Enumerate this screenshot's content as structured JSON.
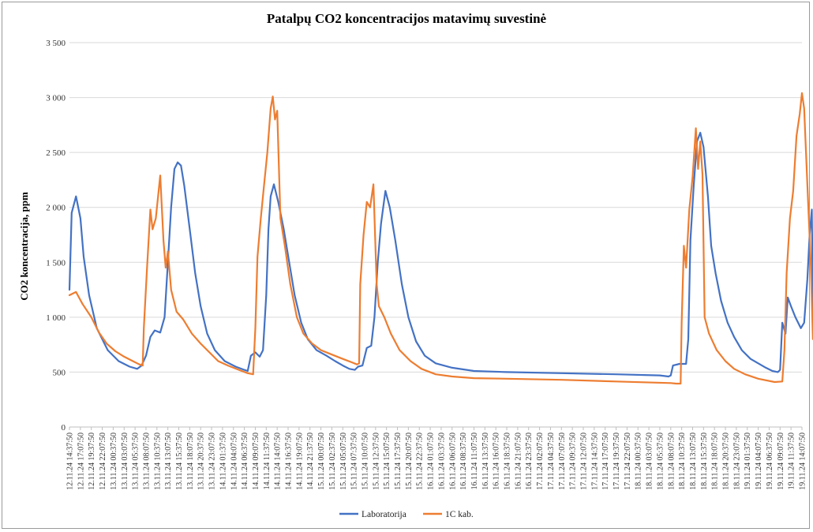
{
  "chart_data": {
    "type": "line",
    "title": "Patalpų CO2 koncentracijos matavimų suvestinė",
    "ylabel": "CO2 koncentracija, ppm",
    "xlabel": "",
    "ylim": [
      0,
      3500
    ],
    "y_ticks": [
      0,
      500,
      1000,
      1500,
      2000,
      2500,
      3000,
      3500
    ],
    "y_tick_labels": [
      "0",
      "500",
      "1 000",
      "1 500",
      "2 000",
      "2 500",
      "3 000",
      "3 500"
    ],
    "grid": "horizontal",
    "legend_position": "bottom",
    "x_tick_labels": [
      "12.11.24 14:37:50",
      "12.11.24 17:07:50",
      "12.11.24 19:37:50",
      "12.11.24 22:07:50",
      "13.11.24 00:37:50",
      "13.11.24 03:07:50",
      "13.11.24 05:37:50",
      "13.11.24 08:07:50",
      "13.11.24 10:37:50",
      "13.11.24 13:07:50",
      "13.11.24 15:37:50",
      "13.11.24 18:07:50",
      "13.11.24 20:37:50",
      "13.11.24 23:07:50",
      "14.11.24 01:37:50",
      "14.11.24 04:07:50",
      "14.11.24 06:37:50",
      "14.11.24 09:07:50",
      "14.11.24 11:37:50",
      "14.11.24 14:07:50",
      "14.11.24 16:37:50",
      "14.11.24 19:07:50",
      "14.11.24 21:37:50",
      "15.11.24 00:07:50",
      "15.11.24 02:37:50",
      "15.11.24 05:07:50",
      "15.11.24 07:37:50",
      "15.11.24 10:07:50",
      "15.11.24 12:37:50",
      "15.11.24 15:07:50",
      "15.11.24 17:37:50",
      "15.11.24 20:07:50",
      "15.11.24 22:37:50",
      "16.11.24 01:07:50",
      "16.11.24 03:37:50",
      "16.11.24 06:07:50",
      "16.11.24 08:37:50",
      "16.11.24 11:07:50",
      "16.11.24 13:37:50",
      "16.11.24 16:07:50",
      "16.11.24 18:37:50",
      "16.11.24 21:07:50",
      "16.11.24 23:37:50",
      "17.11.24 02:07:50",
      "17.11.24 04:37:50",
      "17.11.24 07:07:50",
      "17.11.24 09:37:50",
      "17.11.24 12:07:50",
      "17.11.24 14:37:50",
      "17.11.24 17:07:50",
      "17.11.24 19:37:50",
      "17.11.24 22:07:50",
      "18.11.24 00:37:50",
      "18.11.24 03:07:50",
      "18.11.24 05:37:50",
      "18.11.24 08:07:50",
      "18.11.24 10:37:50",
      "18.11.24 13:07:50",
      "18.11.24 15:37:50",
      "18.11.24 18:07:50",
      "18.11.24 20:37:50",
      "18.11.24 23:07:50",
      "19.11.24 01:37:50",
      "19.11.24 04:07:50",
      "19.11.24 06:37:50",
      "19.11.24 09:07:50",
      "19.11.24 11:37:50",
      "19.11.24 14:07:50"
    ],
    "series": [
      {
        "name": "Laboratorija",
        "color": "#4472C4",
        "points": [
          [
            0,
            1250
          ],
          [
            0.2,
            1950
          ],
          [
            0.6,
            2100
          ],
          [
            1.0,
            1900
          ],
          [
            1.3,
            1550
          ],
          [
            1.8,
            1200
          ],
          [
            2.5,
            900
          ],
          [
            3.5,
            700
          ],
          [
            4.5,
            600
          ],
          [
            5.5,
            550
          ],
          [
            6.2,
            530
          ],
          [
            6.6,
            560
          ],
          [
            7.0,
            650
          ],
          [
            7.4,
            820
          ],
          [
            7.8,
            880
          ],
          [
            8.3,
            860
          ],
          [
            8.7,
            1000
          ],
          [
            9.0,
            1500
          ],
          [
            9.3,
            2000
          ],
          [
            9.6,
            2350
          ],
          [
            9.9,
            2410
          ],
          [
            10.2,
            2380
          ],
          [
            10.5,
            2200
          ],
          [
            11.0,
            1800
          ],
          [
            11.5,
            1400
          ],
          [
            12.0,
            1100
          ],
          [
            12.6,
            850
          ],
          [
            13.3,
            700
          ],
          [
            14.2,
            600
          ],
          [
            15.2,
            550
          ],
          [
            16.0,
            520
          ],
          [
            16.3,
            510
          ],
          [
            16.6,
            650
          ],
          [
            17.0,
            680
          ],
          [
            17.4,
            640
          ],
          [
            17.7,
            700
          ],
          [
            18.0,
            1200
          ],
          [
            18.2,
            1800
          ],
          [
            18.4,
            2100
          ],
          [
            18.7,
            2210
          ],
          [
            19.1,
            2050
          ],
          [
            19.6,
            1800
          ],
          [
            20.1,
            1500
          ],
          [
            20.6,
            1200
          ],
          [
            21.2,
            950
          ],
          [
            21.8,
            800
          ],
          [
            22.6,
            700
          ],
          [
            23.5,
            650
          ],
          [
            24.3,
            600
          ],
          [
            25.0,
            560
          ],
          [
            25.6,
            530
          ],
          [
            26.1,
            520
          ],
          [
            26.4,
            550
          ],
          [
            26.8,
            560
          ],
          [
            27.2,
            720
          ],
          [
            27.6,
            740
          ],
          [
            27.9,
            1000
          ],
          [
            28.2,
            1500
          ],
          [
            28.5,
            1850
          ],
          [
            28.9,
            2150
          ],
          [
            29.3,
            2000
          ],
          [
            29.8,
            1700
          ],
          [
            30.4,
            1300
          ],
          [
            31.0,
            1000
          ],
          [
            31.7,
            780
          ],
          [
            32.5,
            650
          ],
          [
            33.5,
            580
          ],
          [
            35.0,
            540
          ],
          [
            37.0,
            510
          ],
          [
            40.0,
            500
          ],
          [
            45.0,
            490
          ],
          [
            50.0,
            480
          ],
          [
            54.0,
            470
          ],
          [
            54.8,
            460
          ],
          [
            55.0,
            470
          ],
          [
            55.2,
            560
          ],
          [
            55.8,
            575
          ],
          [
            56.4,
            575
          ],
          [
            56.6,
            800
          ],
          [
            56.8,
            1700
          ],
          [
            57.1,
            2200
          ],
          [
            57.4,
            2600
          ],
          [
            57.7,
            2680
          ],
          [
            58.0,
            2550
          ],
          [
            58.4,
            2100
          ],
          [
            58.7,
            1650
          ],
          [
            59.1,
            1400
          ],
          [
            59.6,
            1150
          ],
          [
            60.2,
            950
          ],
          [
            60.8,
            820
          ],
          [
            61.5,
            700
          ],
          [
            62.3,
            620
          ],
          [
            63.0,
            580
          ],
          [
            63.7,
            540
          ],
          [
            64.3,
            510
          ],
          [
            64.8,
            500
          ],
          [
            65.0,
            520
          ],
          [
            65.2,
            950
          ],
          [
            65.5,
            850
          ],
          [
            65.7,
            1180
          ],
          [
            66.0,
            1100
          ],
          [
            66.4,
            1000
          ],
          [
            66.9,
            900
          ],
          [
            67.2,
            950
          ],
          [
            67.5,
            1350
          ],
          [
            67.7,
            1750
          ],
          [
            67.9,
            1980
          ],
          [
            68.0,
            1050
          ]
        ]
      },
      {
        "name": "1C kab.",
        "color": "#ED7D31",
        "points": [
          [
            0,
            1200
          ],
          [
            0.6,
            1230
          ],
          [
            1.2,
            1120
          ],
          [
            2.0,
            1000
          ],
          [
            2.7,
            860
          ],
          [
            3.4,
            760
          ],
          [
            4.2,
            690
          ],
          [
            5.0,
            640
          ],
          [
            5.8,
            600
          ],
          [
            6.4,
            570
          ],
          [
            6.7,
            560
          ],
          [
            6.8,
            900
          ],
          [
            7.1,
            1450
          ],
          [
            7.4,
            1980
          ],
          [
            7.6,
            1800
          ],
          [
            7.9,
            1900
          ],
          [
            8.3,
            2290
          ],
          [
            8.6,
            1700
          ],
          [
            8.8,
            1450
          ],
          [
            9.0,
            1600
          ],
          [
            9.3,
            1250
          ],
          [
            9.8,
            1050
          ],
          [
            10.4,
            980
          ],
          [
            11.2,
            850
          ],
          [
            12.0,
            760
          ],
          [
            12.8,
            680
          ],
          [
            13.6,
            600
          ],
          [
            14.5,
            560
          ],
          [
            15.5,
            520
          ],
          [
            16.3,
            490
          ],
          [
            16.8,
            480
          ],
          [
            17.0,
            900
          ],
          [
            17.2,
            1550
          ],
          [
            17.5,
            1900
          ],
          [
            17.8,
            2200
          ],
          [
            18.1,
            2500
          ],
          [
            18.4,
            2900
          ],
          [
            18.6,
            3010
          ],
          [
            18.8,
            2800
          ],
          [
            19.0,
            2880
          ],
          [
            19.3,
            1900
          ],
          [
            19.7,
            1650
          ],
          [
            20.2,
            1300
          ],
          [
            20.8,
            1000
          ],
          [
            21.4,
            850
          ],
          [
            22.2,
            760
          ],
          [
            23.0,
            700
          ],
          [
            24.0,
            660
          ],
          [
            25.0,
            620
          ],
          [
            25.8,
            590
          ],
          [
            26.3,
            570
          ],
          [
            26.5,
            580
          ],
          [
            26.6,
            1300
          ],
          [
            26.9,
            1750
          ],
          [
            27.2,
            2050
          ],
          [
            27.5,
            2000
          ],
          [
            27.8,
            2210
          ],
          [
            28.1,
            1300
          ],
          [
            28.3,
            1100
          ],
          [
            28.8,
            1000
          ],
          [
            29.4,
            850
          ],
          [
            30.2,
            700
          ],
          [
            31.2,
            600
          ],
          [
            32.2,
            530
          ],
          [
            33.5,
            480
          ],
          [
            35.0,
            460
          ],
          [
            37.0,
            445
          ],
          [
            40.0,
            440
          ],
          [
            45.0,
            430
          ],
          [
            50.0,
            415
          ],
          [
            55.0,
            400
          ],
          [
            55.5,
            395
          ],
          [
            55.9,
            395
          ],
          [
            56.0,
            950
          ],
          [
            56.2,
            1650
          ],
          [
            56.4,
            1450
          ],
          [
            56.7,
            1980
          ],
          [
            57.0,
            2280
          ],
          [
            57.3,
            2720
          ],
          [
            57.5,
            2350
          ],
          [
            57.7,
            2600
          ],
          [
            57.9,
            2300
          ],
          [
            58.1,
            1000
          ],
          [
            58.5,
            850
          ],
          [
            59.2,
            700
          ],
          [
            60.0,
            600
          ],
          [
            60.8,
            530
          ],
          [
            61.8,
            480
          ],
          [
            63.0,
            440
          ],
          [
            64.5,
            410
          ],
          [
            65.2,
            415
          ],
          [
            65.4,
            700
          ],
          [
            65.6,
            1400
          ],
          [
            65.9,
            1900
          ],
          [
            66.2,
            2150
          ],
          [
            66.5,
            2650
          ],
          [
            66.8,
            2850
          ],
          [
            67.0,
            3040
          ],
          [
            67.2,
            2900
          ],
          [
            67.5,
            2200
          ],
          [
            67.8,
            1500
          ],
          [
            68.0,
            800
          ]
        ]
      }
    ]
  }
}
